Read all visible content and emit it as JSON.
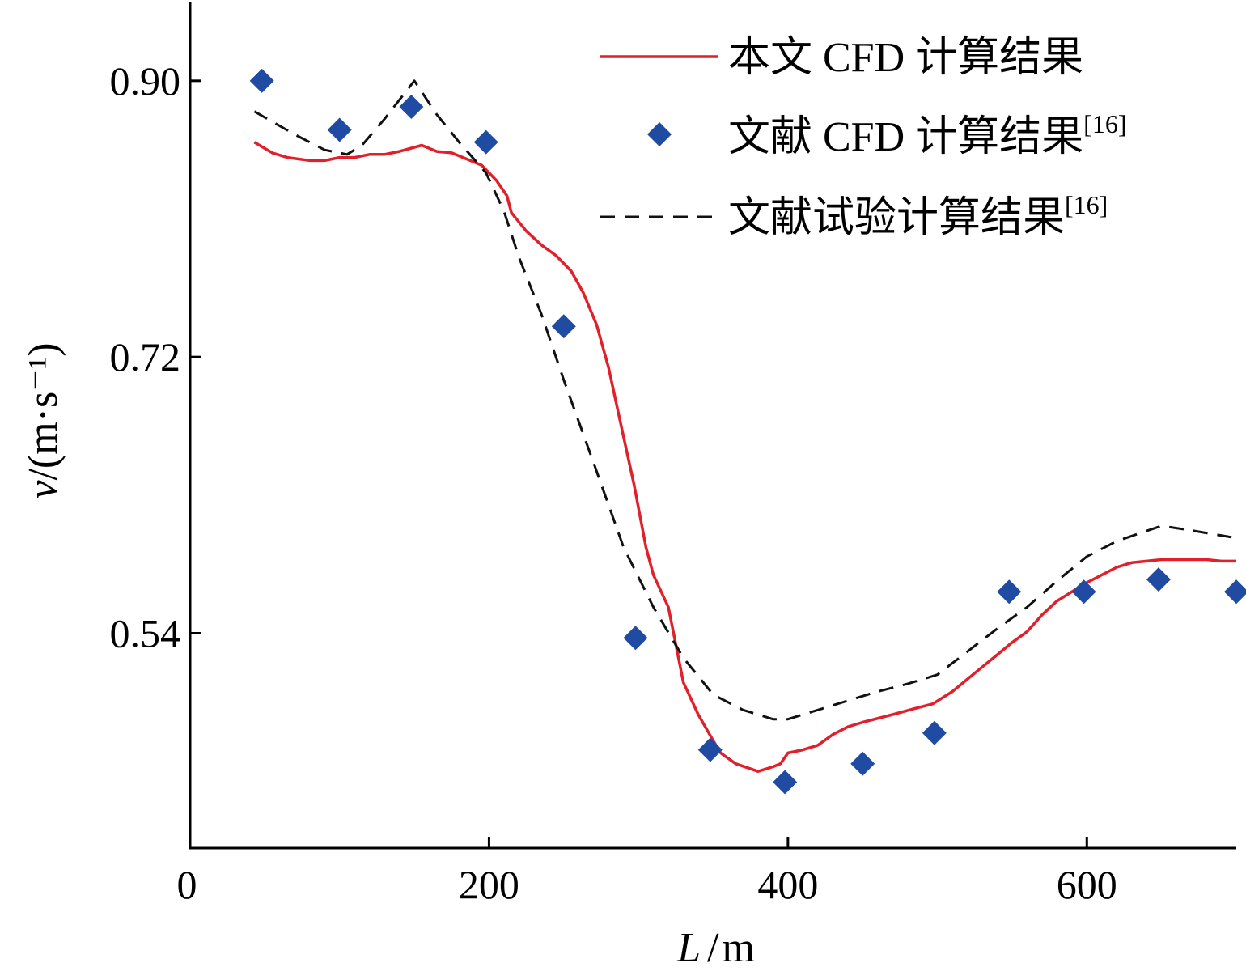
{
  "chart_data": {
    "type": "line",
    "title": "",
    "xlabel": "L / m",
    "xlabel_var": "L",
    "xlabel_unit": "m",
    "ylabel": "v/(m·s⁻¹)",
    "ylabel_var": "v",
    "ylabel_unit": "/(m·s⁻¹)",
    "xlim": [
      0,
      700
    ],
    "ylim": [
      0.4,
      0.95
    ],
    "xticks": [
      0,
      200,
      400,
      600
    ],
    "xtick_labels": [
      "0",
      "200",
      "400",
      "600"
    ],
    "yticks": [
      0.54,
      0.72,
      0.9
    ],
    "ytick_labels": [
      "0.54",
      "0.72",
      "0.90"
    ],
    "grid": false,
    "legend_position": "top-right",
    "series": [
      {
        "name": "本文 CFD 计算结果",
        "legend_label": "本文 CFD 计算结果",
        "legend_sup": "",
        "style": "solid-line",
        "color": "#e0202a",
        "x": [
          43,
          55,
          65,
          80,
          90,
          100,
          110,
          120,
          130,
          140,
          155,
          165,
          175,
          195,
          205,
          212,
          215,
          225,
          235,
          245,
          255,
          263,
          272,
          280,
          290,
          297,
          305,
          310,
          320,
          330,
          340,
          350,
          355,
          365,
          380,
          390,
          395,
          400,
          410,
          420,
          430,
          440,
          450,
          470,
          485,
          497,
          510,
          520,
          530,
          540,
          550,
          560,
          570,
          580,
          600,
          620,
          630,
          650,
          660,
          680,
          690,
          700
        ],
        "y": [
          0.86,
          0.853,
          0.85,
          0.848,
          0.848,
          0.85,
          0.85,
          0.852,
          0.852,
          0.854,
          0.858,
          0.854,
          0.853,
          0.845,
          0.835,
          0.825,
          0.814,
          0.802,
          0.793,
          0.786,
          0.776,
          0.762,
          0.741,
          0.713,
          0.668,
          0.637,
          0.596,
          0.578,
          0.557,
          0.508,
          0.487,
          0.47,
          0.462,
          0.455,
          0.45,
          0.453,
          0.455,
          0.462,
          0.464,
          0.467,
          0.474,
          0.479,
          0.482,
          0.487,
          0.491,
          0.494,
          0.502,
          0.51,
          0.518,
          0.526,
          0.534,
          0.541,
          0.552,
          0.561,
          0.573,
          0.583,
          0.586,
          0.588,
          0.588,
          0.588,
          0.587,
          0.587
        ]
      },
      {
        "name": "文献 CFD 计算结果[16]",
        "legend_label": "文献 CFD 计算结果",
        "legend_sup": "[16]",
        "style": "diamond-marker",
        "color": "#1f4ba3",
        "x": [
          48,
          100,
          148,
          198,
          250,
          298,
          348,
          398,
          450,
          498,
          548,
          598,
          648,
          700
        ],
        "y": [
          0.9,
          0.868,
          0.883,
          0.86,
          0.74,
          0.537,
          0.464,
          0.443,
          0.455,
          0.475,
          0.567,
          0.567,
          0.575,
          0.567
        ]
      },
      {
        "name": "文献试验计算结果[16]",
        "legend_label": "文献试验计算结果",
        "legend_sup": "[16]",
        "style": "dashed-line",
        "color": "#111111",
        "x": [
          43,
          70,
          90,
          105,
          115,
          130,
          150,
          165,
          180,
          198,
          210,
          220,
          235,
          250,
          270,
          290,
          310,
          330,
          350,
          370,
          390,
          400,
          420,
          440,
          460,
          480,
          500,
          520,
          540,
          560,
          580,
          600,
          620,
          650,
          670,
          700
        ],
        "y": [
          0.88,
          0.865,
          0.855,
          0.852,
          0.858,
          0.875,
          0.9,
          0.878,
          0.86,
          0.84,
          0.815,
          0.785,
          0.748,
          0.705,
          0.651,
          0.596,
          0.557,
          0.524,
          0.5,
          0.49,
          0.484,
          0.484,
          0.49,
          0.496,
          0.502,
          0.507,
          0.513,
          0.528,
          0.543,
          0.557,
          0.574,
          0.59,
          0.6,
          0.61,
          0.607,
          0.602
        ]
      }
    ]
  }
}
